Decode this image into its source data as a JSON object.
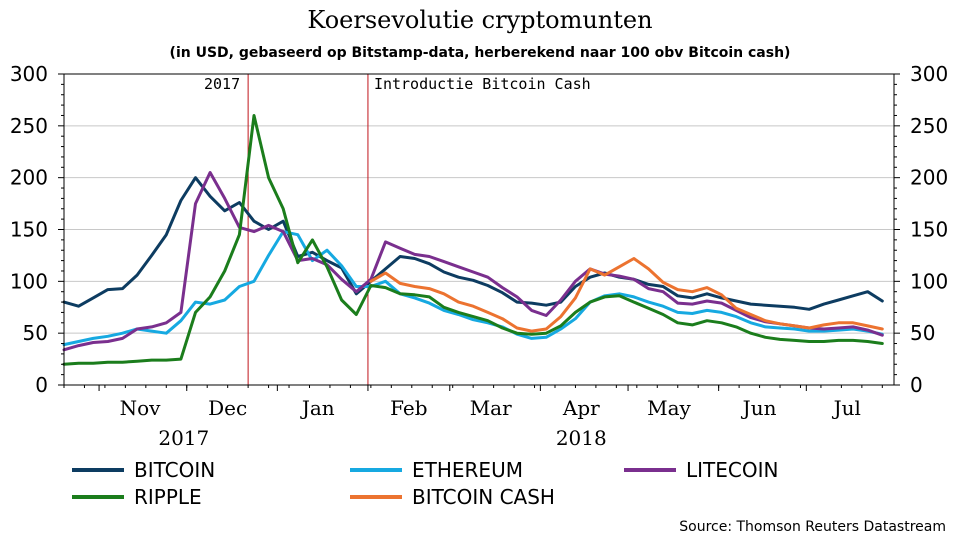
{
  "chart_data": {
    "type": "line",
    "title": "Koersevolutie cryptomunten",
    "subtitle": "(in USD, gebaseerd op Bitstamp-data, herberekend naar 100 obv Bitcoin cash)",
    "source": "Source: Thomson Reuters Datastream",
    "ylim": [
      0,
      300
    ],
    "y_ticks": [
      "0",
      "50",
      "100",
      "150",
      "200",
      "250",
      "300"
    ],
    "y_tick_values": [
      0,
      50,
      100,
      150,
      200,
      250,
      300
    ],
    "xlim": [
      "2017-10-20",
      "2018-07-31"
    ],
    "month_labels": [
      {
        "label": "Nov",
        "date": "2017-11-15"
      },
      {
        "label": "Dec",
        "date": "2017-12-15"
      },
      {
        "label": "Jan",
        "date": "2018-01-15"
      },
      {
        "label": "Feb",
        "date": "2018-02-15"
      },
      {
        "label": "Mar",
        "date": "2018-03-15"
      },
      {
        "label": "Apr",
        "date": "2018-04-15"
      },
      {
        "label": "May",
        "date": "2018-05-15"
      },
      {
        "label": "Jun",
        "date": "2018-06-15"
      },
      {
        "label": "Jul",
        "date": "2018-07-15"
      }
    ],
    "year_labels": [
      {
        "label": "2017",
        "date": "2017-11-30"
      },
      {
        "label": "2018",
        "date": "2018-04-15"
      }
    ],
    "grid": true,
    "annotations": [
      {
        "label": "2017",
        "date": "2017-12-22"
      },
      {
        "label": "Introductie Bitcoin Cash",
        "date": "2018-02-01"
      }
    ],
    "legend_position": "bottom",
    "x": [
      "2017-10-20",
      "2017-10-25",
      "2017-10-30",
      "2017-11-04",
      "2017-11-09",
      "2017-11-14",
      "2017-11-19",
      "2017-11-24",
      "2017-11-29",
      "2017-12-04",
      "2017-12-09",
      "2017-12-14",
      "2017-12-19",
      "2017-12-24",
      "2017-12-29",
      "2018-01-03",
      "2018-01-08",
      "2018-01-13",
      "2018-01-18",
      "2018-01-23",
      "2018-01-28",
      "2018-02-02",
      "2018-02-07",
      "2018-02-12",
      "2018-02-17",
      "2018-02-22",
      "2018-02-27",
      "2018-03-04",
      "2018-03-09",
      "2018-03-14",
      "2018-03-19",
      "2018-03-24",
      "2018-03-29",
      "2018-04-03",
      "2018-04-08",
      "2018-04-13",
      "2018-04-18",
      "2018-04-23",
      "2018-04-28",
      "2018-05-03",
      "2018-05-08",
      "2018-05-13",
      "2018-05-18",
      "2018-05-23",
      "2018-05-28",
      "2018-06-02",
      "2018-06-07",
      "2018-06-12",
      "2018-06-17",
      "2018-06-22",
      "2018-06-27",
      "2018-07-02",
      "2018-07-07",
      "2018-07-12",
      "2018-07-17",
      "2018-07-22",
      "2018-07-27"
    ],
    "series": [
      {
        "name": "BITCOIN",
        "color": "#0d3c61",
        "values": [
          80,
          76,
          84,
          92,
          93,
          106,
          125,
          145,
          178,
          200,
          182,
          168,
          176,
          158,
          150,
          158,
          124,
          128,
          120,
          113,
          88,
          100,
          112,
          124,
          122,
          117,
          109,
          104,
          101,
          96,
          89,
          80,
          79,
          77,
          80,
          95,
          104,
          108,
          104,
          102,
          97,
          95,
          86,
          84,
          88,
          84,
          81,
          78,
          77,
          76,
          75,
          73,
          78,
          82,
          86,
          90,
          81
        ]
      },
      {
        "name": "ETHEREUM",
        "color": "#16a9e1",
        "values": [
          39,
          42,
          45,
          47,
          50,
          54,
          52,
          50,
          62,
          80,
          78,
          82,
          95,
          100,
          125,
          148,
          145,
          120,
          130,
          115,
          95,
          95,
          100,
          88,
          84,
          79,
          72,
          68,
          63,
          60,
          56,
          49,
          45,
          46,
          54,
          64,
          80,
          86,
          88,
          85,
          80,
          76,
          70,
          69,
          72,
          70,
          66,
          60,
          56,
          55,
          54,
          52,
          52,
          53,
          54,
          52,
          49
        ]
      },
      {
        "name": "LITECOIN",
        "color": "#7a2f8e",
        "values": [
          34,
          38,
          41,
          42,
          45,
          54,
          56,
          60,
          70,
          175,
          205,
          180,
          152,
          148,
          154,
          148,
          120,
          122,
          116,
          102,
          90,
          102,
          138,
          132,
          126,
          124,
          119,
          114,
          109,
          104,
          94,
          85,
          72,
          67,
          82,
          100,
          112,
          107,
          105,
          102,
          93,
          90,
          79,
          78,
          81,
          79,
          72,
          65,
          61,
          59,
          57,
          55,
          54,
          55,
          56,
          53,
          48
        ]
      },
      {
        "name": "RIPPLE",
        "color": "#1b7d1c",
        "values": [
          20,
          21,
          21,
          22,
          22,
          23,
          24,
          24,
          25,
          70,
          85,
          110,
          145,
          260,
          200,
          170,
          118,
          140,
          114,
          82,
          68,
          96,
          94,
          88,
          87,
          85,
          75,
          70,
          66,
          62,
          55,
          50,
          49,
          50,
          57,
          70,
          80,
          85,
          86,
          80,
          74,
          68,
          60,
          58,
          62,
          60,
          56,
          50,
          46,
          44,
          43,
          42,
          42,
          43,
          43,
          42,
          40
        ]
      },
      {
        "name": "BITCOIN CASH",
        "color": "#ec7330",
        "values": [
          null,
          null,
          null,
          null,
          null,
          null,
          null,
          null,
          null,
          null,
          null,
          null,
          null,
          null,
          null,
          null,
          null,
          null,
          null,
          null,
          null,
          100,
          108,
          98,
          95,
          93,
          88,
          80,
          76,
          70,
          64,
          55,
          52,
          54,
          66,
          84,
          112,
          106,
          114,
          122,
          112,
          99,
          92,
          90,
          94,
          87,
          74,
          68,
          62,
          59,
          57,
          55,
          58,
          60,
          60,
          57,
          54
        ]
      }
    ]
  }
}
